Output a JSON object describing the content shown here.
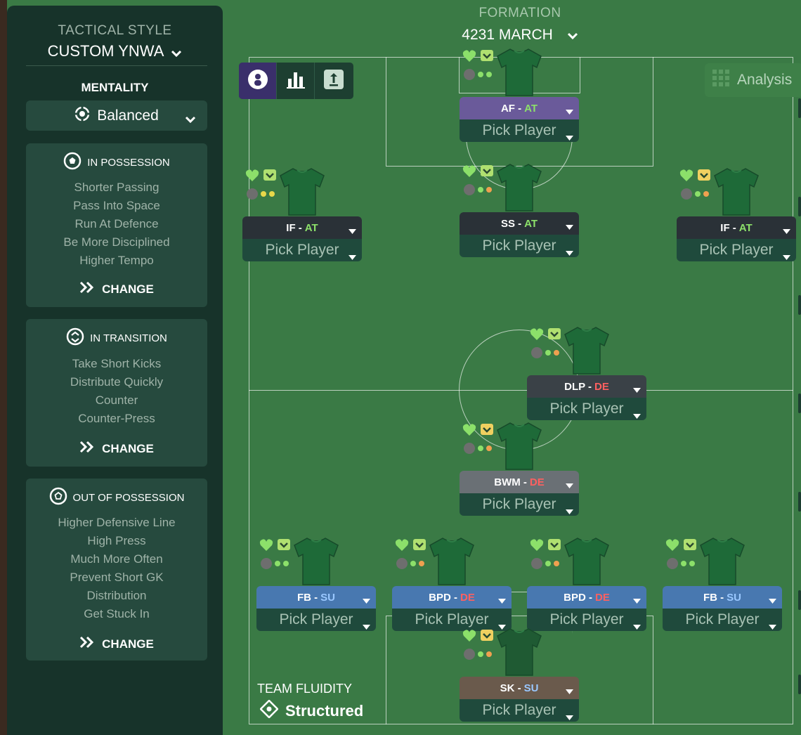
{
  "sidebar": {
    "tactical_style_label": "TACTICAL STYLE",
    "tactical_style_value": "CUSTOM YNWA",
    "mentality_label": "MENTALITY",
    "mentality_value": "Balanced",
    "in_possession": {
      "title": "IN POSSESSION",
      "items": [
        "Shorter Passing",
        "Pass Into Space",
        "Run At Defence",
        "Be More Disciplined",
        "Higher Tempo"
      ],
      "change_label": "CHANGE"
    },
    "in_transition": {
      "title": "IN TRANSITION",
      "items": [
        "Take Short Kicks",
        "Distribute Quickly",
        "Counter",
        "Counter-Press"
      ],
      "change_label": "CHANGE"
    },
    "out_of_possession": {
      "title": "OUT OF POSSESSION",
      "items": [
        "Higher Defensive Line",
        "High Press",
        "Much More Often",
        "Prevent Short GK",
        "Distribution",
        "Get Stuck In"
      ],
      "change_label": "CHANGE"
    }
  },
  "formation": {
    "label": "FORMATION",
    "name": "4231 MARCH"
  },
  "analysis_label": "Analysis",
  "team_fluidity": {
    "label": "TEAM FLUIDITY",
    "value": "Structured"
  },
  "colors": {
    "attack_duty": "#8ce06a",
    "defend_duty": "#ff6060",
    "support_duty": "#9ac8ff",
    "attack_role_bg": "#2a3137",
    "support_role_bg": "#4878b0",
    "af_role_bg": "#6a5a9a",
    "bwm_role_bg": "#6a7075",
    "gk_role_bg": "#6a5a4c"
  },
  "players": [
    {
      "id": "af",
      "role": "AF",
      "duty": "AT",
      "pick": "Pick Player"
    },
    {
      "id": "if_l",
      "role": "IF",
      "duty": "AT",
      "pick": "Pick Player"
    },
    {
      "id": "ss",
      "role": "SS",
      "duty": "AT",
      "pick": "Pick Player"
    },
    {
      "id": "if_r",
      "role": "IF",
      "duty": "AT",
      "pick": "Pick Player"
    },
    {
      "id": "dlp",
      "role": "DLP",
      "duty": "DE",
      "pick": "Pick Player"
    },
    {
      "id": "bwm",
      "role": "BWM",
      "duty": "DE",
      "pick": "Pick Player"
    },
    {
      "id": "fb_l",
      "role": "FB",
      "duty": "SU",
      "pick": "Pick Player"
    },
    {
      "id": "bpd_l",
      "role": "BPD",
      "duty": "DE",
      "pick": "Pick Player"
    },
    {
      "id": "bpd_r",
      "role": "BPD",
      "duty": "DE",
      "pick": "Pick Player"
    },
    {
      "id": "fb_r",
      "role": "FB",
      "duty": "SU",
      "pick": "Pick Player"
    },
    {
      "id": "sk",
      "role": "SK",
      "duty": "SU",
      "pick": "Pick Player"
    }
  ]
}
